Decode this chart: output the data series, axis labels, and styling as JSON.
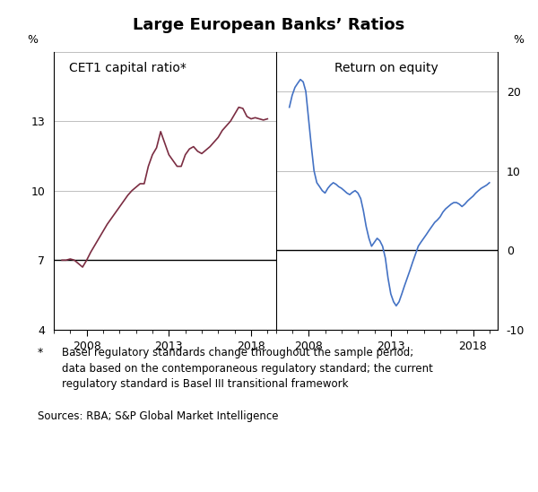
{
  "title": "Large European Banks’ Ratios",
  "left_label": "CET1 capital ratio*",
  "right_label": "Return on equity",
  "ylabel": "%",
  "left_ylim": [
    4,
    16
  ],
  "right_ylim": [
    -10,
    25
  ],
  "left_yticks": [
    4,
    7,
    10,
    13
  ],
  "right_yticks": [
    -10,
    0,
    10,
    20
  ],
  "xlim": [
    2006.0,
    2019.5
  ],
  "xticks": [
    2008,
    2013,
    2018
  ],
  "left_color": "#7B2D42",
  "right_color": "#4472C4",
  "grid_color": "#BEBEBE",
  "footnote_star": "*",
  "footnote_text": "Basel regulatory standards change throughout the sample period;\ndata based on the contemporaneous regulatory standard; the current\nregulatory standard is Basel III transitional framework",
  "sources": "Sources: RBA; S&P Global Market Intelligence",
  "cet1_x": [
    2006.5,
    2006.75,
    2007.0,
    2007.25,
    2007.5,
    2007.75,
    2008.0,
    2008.25,
    2008.5,
    2008.75,
    2009.0,
    2009.25,
    2009.5,
    2009.75,
    2010.0,
    2010.25,
    2010.5,
    2010.75,
    2011.0,
    2011.25,
    2011.5,
    2011.75,
    2012.0,
    2012.25,
    2012.5,
    2012.75,
    2013.0,
    2013.25,
    2013.5,
    2013.75,
    2014.0,
    2014.25,
    2014.5,
    2014.75,
    2015.0,
    2015.25,
    2015.5,
    2015.75,
    2016.0,
    2016.25,
    2016.5,
    2016.75,
    2017.0,
    2017.25,
    2017.5,
    2017.75,
    2018.0,
    2018.25,
    2018.5,
    2018.75,
    2019.0
  ],
  "cet1_y": [
    7.0,
    7.0,
    7.05,
    7.0,
    6.85,
    6.7,
    7.0,
    7.35,
    7.65,
    7.95,
    8.25,
    8.55,
    8.8,
    9.05,
    9.3,
    9.55,
    9.8,
    10.0,
    10.15,
    10.3,
    10.3,
    11.05,
    11.55,
    11.85,
    12.55,
    12.05,
    11.55,
    11.3,
    11.05,
    11.05,
    11.55,
    11.8,
    11.9,
    11.7,
    11.6,
    11.75,
    11.9,
    12.1,
    12.3,
    12.6,
    12.8,
    13.0,
    13.3,
    13.6,
    13.55,
    13.2,
    13.1,
    13.15,
    13.1,
    13.05,
    13.1
  ],
  "roe_x": [
    2006.83,
    2007.0,
    2007.17,
    2007.33,
    2007.5,
    2007.67,
    2007.83,
    2008.0,
    2008.17,
    2008.33,
    2008.5,
    2008.67,
    2008.83,
    2009.0,
    2009.17,
    2009.33,
    2009.5,
    2009.67,
    2009.83,
    2010.0,
    2010.17,
    2010.33,
    2010.5,
    2010.67,
    2010.83,
    2011.0,
    2011.17,
    2011.33,
    2011.5,
    2011.67,
    2011.83,
    2012.0,
    2012.17,
    2012.33,
    2012.5,
    2012.67,
    2012.83,
    2013.0,
    2013.17,
    2013.33,
    2013.5,
    2013.67,
    2013.83,
    2014.0,
    2014.17,
    2014.33,
    2014.5,
    2014.67,
    2014.83,
    2015.0,
    2015.17,
    2015.33,
    2015.5,
    2015.67,
    2015.83,
    2016.0,
    2016.17,
    2016.33,
    2016.5,
    2016.67,
    2016.83,
    2017.0,
    2017.17,
    2017.33,
    2017.5,
    2017.67,
    2017.83,
    2018.0,
    2018.17,
    2018.33,
    2018.5,
    2018.67,
    2018.83,
    2019.0
  ],
  "roe_y": [
    18.0,
    19.5,
    20.5,
    21.0,
    21.5,
    21.2,
    20.0,
    16.5,
    13.0,
    10.0,
    8.5,
    8.0,
    7.5,
    7.2,
    7.8,
    8.2,
    8.5,
    8.3,
    8.0,
    7.8,
    7.5,
    7.2,
    7.0,
    7.3,
    7.5,
    7.2,
    6.5,
    5.0,
    3.0,
    1.5,
    0.5,
    1.0,
    1.5,
    1.2,
    0.5,
    -1.0,
    -3.5,
    -5.5,
    -6.5,
    -7.0,
    -6.5,
    -5.5,
    -4.5,
    -3.5,
    -2.5,
    -1.5,
    -0.5,
    0.5,
    1.0,
    1.5,
    2.0,
    2.5,
    3.0,
    3.5,
    3.8,
    4.2,
    4.8,
    5.2,
    5.5,
    5.8,
    6.0,
    6.0,
    5.8,
    5.5,
    5.8,
    6.2,
    6.5,
    6.8,
    7.2,
    7.5,
    7.8,
    8.0,
    8.2,
    8.5
  ]
}
